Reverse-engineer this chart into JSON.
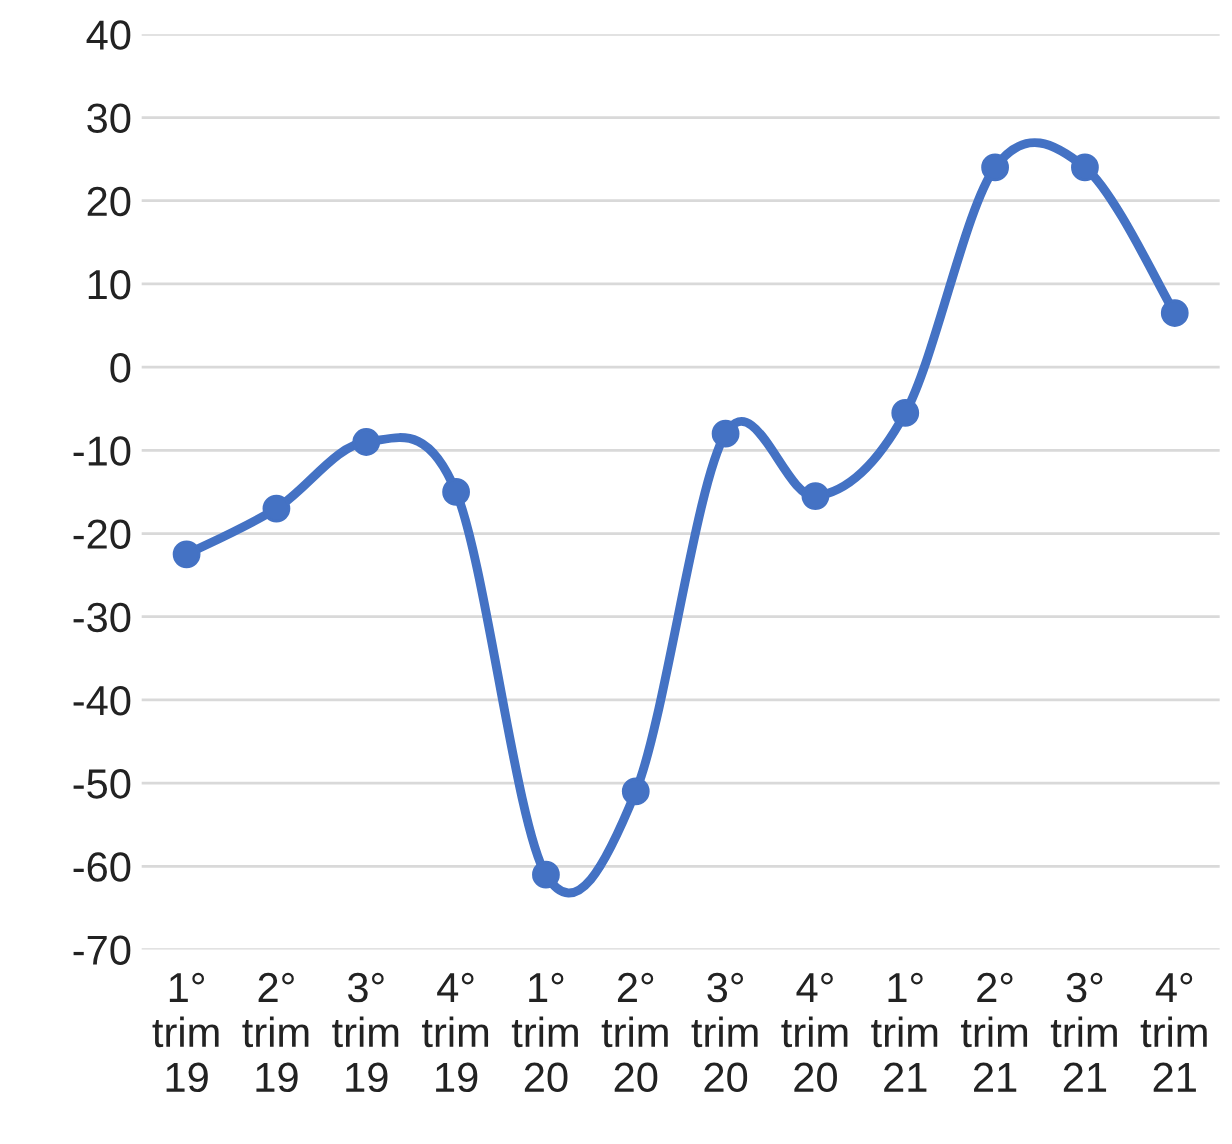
{
  "chart_data": {
    "type": "line",
    "categories": [
      "1°\ntrim\n19",
      "2°\ntrim\n19",
      "3°\ntrim\n19",
      "4°\ntrim\n19",
      "1°\ntrim\n20",
      "2°\ntrim\n20",
      "3°\ntrim\n20",
      "4°\ntrim\n20",
      "1°\ntrim\n21",
      "2°\ntrim\n21",
      "3°\ntrim\n21",
      "4°\ntrim\n21"
    ],
    "series": [
      {
        "color": "#4472c4",
        "values": [
          -22.5,
          -17,
          -9,
          -15,
          -61,
          -51,
          -8,
          -15.5,
          -5.5,
          24,
          24,
          6.5
        ]
      }
    ],
    "ylim": [
      -70,
      40
    ],
    "yticks": [
      -70,
      -60,
      -50,
      -40,
      -30,
      -20,
      -10,
      0,
      10,
      20,
      30,
      40
    ],
    "grid": "y",
    "marker": "circle",
    "line_style": "solid"
  }
}
